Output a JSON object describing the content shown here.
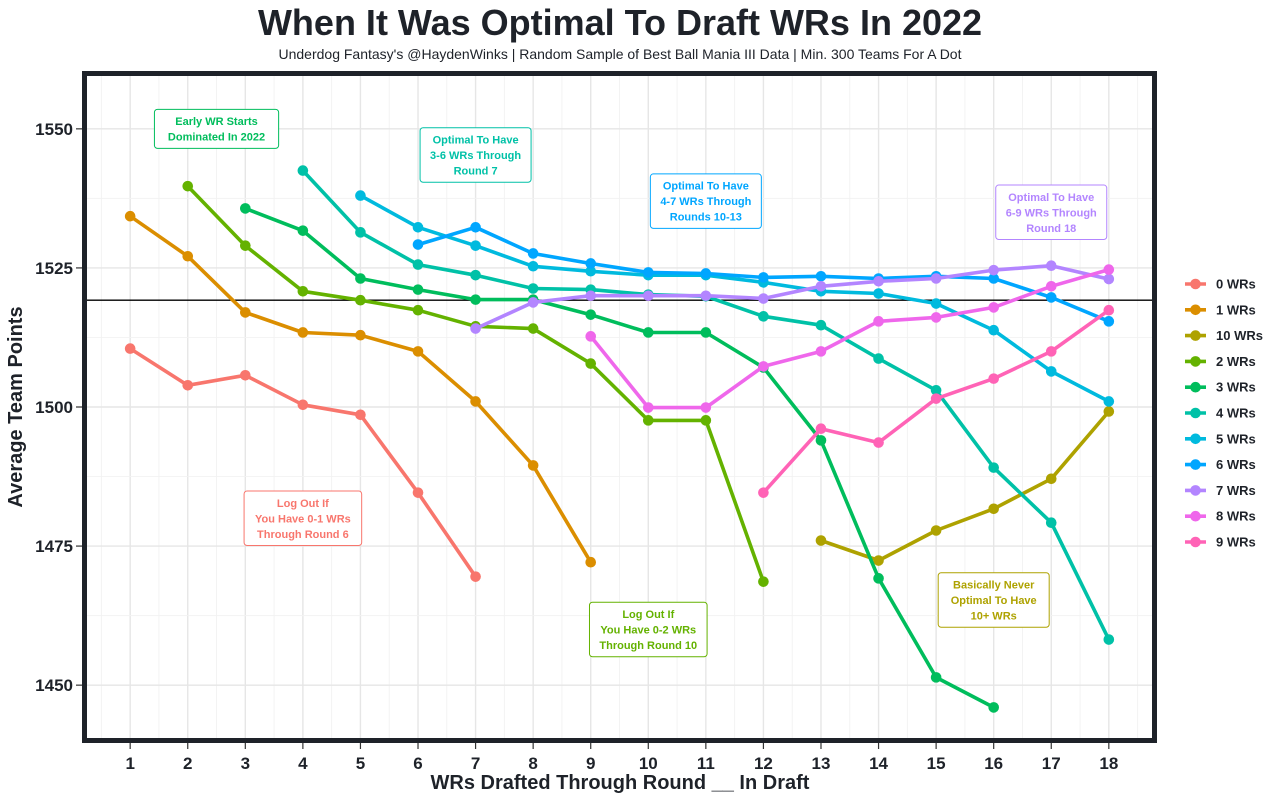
{
  "chart_data": {
    "type": "line",
    "title": "When It Was Optimal To Draft WRs In 2022",
    "subtitle": "Underdog Fantasy's @HaydenWinks | Random Sample of Best Ball Mania III Data | Min. 300 Teams For A Dot",
    "xlabel": "WRs Drafted Through Round __ In Draft",
    "ylabel": "Average Team Points",
    "xlim": [
      0.25,
      18.75
    ],
    "ylim": [
      1440.5,
      1559.5
    ],
    "x_ticks": [
      1,
      2,
      3,
      4,
      5,
      6,
      7,
      8,
      9,
      10,
      11,
      12,
      13,
      14,
      15,
      16,
      17,
      18
    ],
    "x_tick_labels": [
      "1",
      "2",
      "3",
      "4",
      "5",
      "6",
      "7",
      "8",
      "9",
      "10",
      "11",
      "12",
      "13",
      "14",
      "15",
      "16",
      "17",
      "18"
    ],
    "y_ticks": [
      1450,
      1475,
      1500,
      1525,
      1550
    ],
    "y_tick_labels": [
      "1450",
      "1475",
      "1500",
      "1525",
      "1550"
    ],
    "grid": true,
    "reference_line": 1519.2,
    "legend_position": "right",
    "series": [
      {
        "name": "0 WRs",
        "color": "#F8766D",
        "x": [
          1,
          2,
          3,
          4,
          5,
          6,
          7
        ],
        "values": [
          1510.5,
          1503.9,
          1505.7,
          1500.4,
          1498.6,
          1484.6,
          1469.5
        ]
      },
      {
        "name": "1 WRs",
        "color": "#DB8E00",
        "x": [
          1,
          2,
          3,
          4,
          5,
          6,
          7,
          8,
          9
        ],
        "values": [
          1534.3,
          1527.1,
          1517.0,
          1513.4,
          1512.9,
          1510.0,
          1501.0,
          1489.5,
          1472.1
        ]
      },
      {
        "name": "10 WRs",
        "color": "#AEA200",
        "x": [
          13,
          14,
          15,
          16,
          17,
          18
        ],
        "values": [
          1476.0,
          1472.4,
          1477.8,
          1481.7,
          1487.1,
          1499.2
        ]
      },
      {
        "name": "2 WRs",
        "color": "#64B200",
        "x": [
          2,
          3,
          4,
          5,
          6,
          7,
          8,
          9,
          10,
          11,
          12
        ],
        "values": [
          1539.7,
          1529.0,
          1520.8,
          1519.2,
          1517.4,
          1514.5,
          1514.1,
          1507.8,
          1497.6,
          1497.6,
          1468.6
        ]
      },
      {
        "name": "3 WRs",
        "color": "#00BD5C",
        "x": [
          3,
          4,
          5,
          6,
          7,
          8,
          9,
          10,
          11,
          12,
          13,
          14,
          15,
          16
        ],
        "values": [
          1535.7,
          1531.7,
          1523.1,
          1521.1,
          1519.3,
          1519.3,
          1516.6,
          1513.4,
          1513.4,
          1507.1,
          1494.0,
          1469.2,
          1451.4,
          1446.0
        ]
      },
      {
        "name": "4 WRs",
        "color": "#00C1A7",
        "x": [
          4,
          5,
          6,
          7,
          8,
          9,
          10,
          11,
          12,
          13,
          14,
          15,
          16,
          17,
          18
        ],
        "values": [
          1542.5,
          1531.4,
          1525.6,
          1523.7,
          1521.3,
          1521.1,
          1520.2,
          1519.9,
          1516.3,
          1514.7,
          1508.7,
          1503.0,
          1489.1,
          1479.2,
          1458.2
        ]
      },
      {
        "name": "5 WRs",
        "color": "#00BADE",
        "x": [
          5,
          6,
          7,
          8,
          9,
          10,
          11,
          12,
          13,
          14,
          15,
          16,
          17,
          18
        ],
        "values": [
          1538.0,
          1532.3,
          1529.0,
          1525.3,
          1524.4,
          1523.7,
          1523.7,
          1522.4,
          1520.8,
          1520.4,
          1518.6,
          1513.8,
          1506.4,
          1501.0
        ]
      },
      {
        "name": "6 WRs",
        "color": "#00A6FF",
        "x": [
          6,
          7,
          8,
          9,
          10,
          11,
          12,
          13,
          14,
          15,
          16,
          17,
          18
        ],
        "values": [
          1529.2,
          1532.3,
          1527.6,
          1525.8,
          1524.2,
          1524.0,
          1523.3,
          1523.5,
          1523.1,
          1523.5,
          1523.1,
          1519.7,
          1515.4
        ]
      },
      {
        "name": "7 WRs",
        "color": "#B385FF",
        "x": [
          7,
          8,
          9,
          10,
          11,
          12,
          13,
          14,
          15,
          16,
          17,
          18
        ],
        "values": [
          1514.1,
          1518.8,
          1520.0,
          1520.0,
          1520.0,
          1519.5,
          1521.7,
          1522.6,
          1523.1,
          1524.6,
          1525.4,
          1523.0
        ]
      },
      {
        "name": "8 WRs",
        "color": "#EF67EB",
        "x": [
          9,
          10,
          11,
          12,
          13,
          14,
          15,
          16,
          17,
          18
        ],
        "values": [
          1512.7,
          1499.9,
          1499.9,
          1507.3,
          1510.0,
          1515.4,
          1516.1,
          1517.9,
          1521.7,
          1524.7
        ]
      },
      {
        "name": "9 WRs",
        "color": "#FF63B6",
        "x": [
          12,
          13,
          14,
          15,
          16,
          17,
          18
        ],
        "values": [
          1484.6,
          1496.1,
          1493.6,
          1501.5,
          1505.1,
          1510.0,
          1517.4
        ]
      }
    ],
    "annotations": [
      {
        "lines": [
          "Early WR Starts",
          "Dominated In 2022"
        ],
        "x": 2.5,
        "y": 1550,
        "color": "#00BD5C"
      },
      {
        "lines": [
          "Optimal To Have",
          "3-6 WRs Through",
          "Round 7"
        ],
        "x": 7,
        "y": 1545.3,
        "color": "#00C1A7"
      },
      {
        "lines": [
          "Optimal To Have",
          "4-7 WRs Through",
          "Rounds 10-13"
        ],
        "x": 11,
        "y": 1537,
        "color": "#00A6FF"
      },
      {
        "lines": [
          "Optimal To Have",
          "6-9 WRs Through",
          "Round 18"
        ],
        "x": 17,
        "y": 1535,
        "color": "#B385FF"
      },
      {
        "lines": [
          "Log Out If",
          "You Have 0-1 WRs",
          "Through Round 6"
        ],
        "x": 4,
        "y": 1480,
        "color": "#F8766D"
      },
      {
        "lines": [
          "Log Out If",
          "You Have 0-2 WRs",
          "Through Round 10"
        ],
        "x": 10,
        "y": 1460,
        "color": "#64B200"
      },
      {
        "lines": [
          "Basically Never",
          "Optimal To Have",
          "10+ WRs"
        ],
        "x": 16,
        "y": 1465.3,
        "color": "#AEA200"
      }
    ]
  }
}
